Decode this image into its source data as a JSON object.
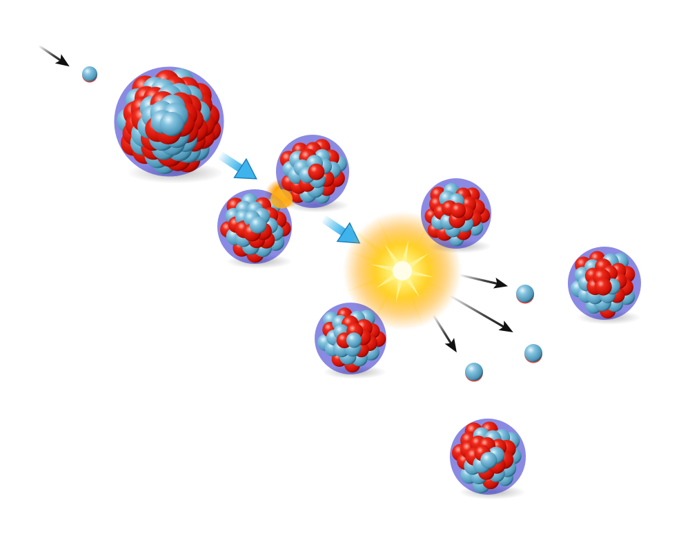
{
  "diagram": {
    "colors": {
      "proton": "#e0170e",
      "proton_shade": "#7a0500",
      "neutron": "#6fb1cf",
      "neutron_shade": "#1e5670",
      "rim": "#2a2acc",
      "arrow_dark": "#111111",
      "arrow_blue": "#3fb4ec",
      "flash_core": "#fff5a0",
      "flash_mid": "#ffcc1a",
      "flash_outer": "#ff9d00"
    },
    "stages": [
      {
        "name": "incoming-neutron"
      },
      {
        "name": "heavy-nucleus"
      },
      {
        "name": "deformed-nucleus"
      },
      {
        "name": "fission-flash"
      },
      {
        "name": "fission-fragments"
      },
      {
        "name": "released-neutrons"
      }
    ]
  }
}
